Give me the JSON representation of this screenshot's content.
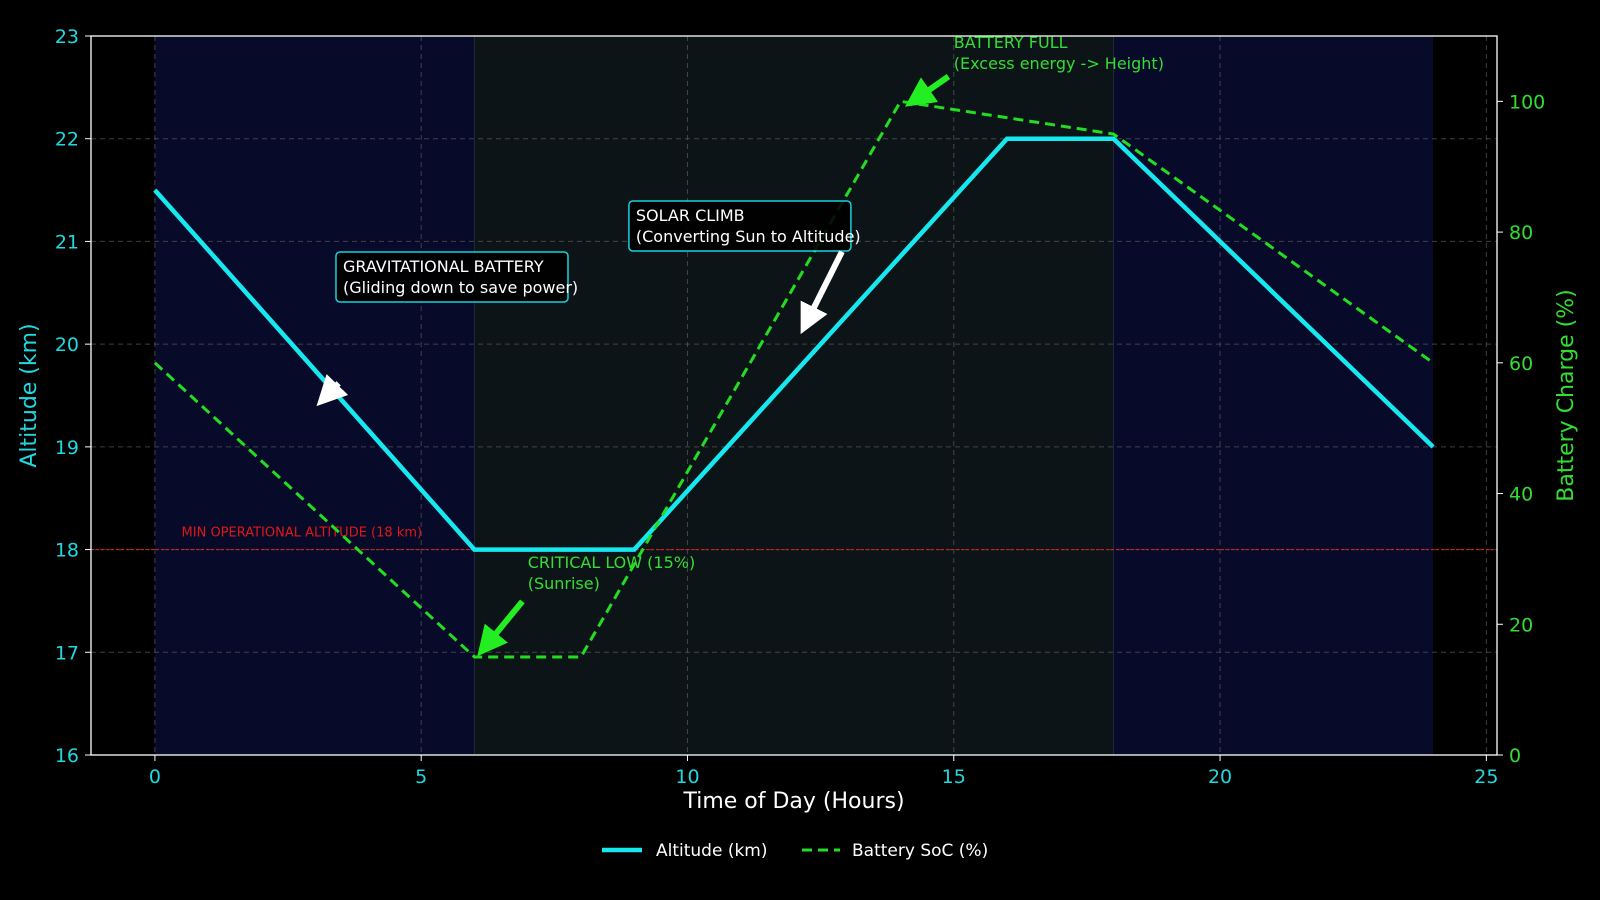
{
  "chart_data": {
    "type": "line",
    "xlabel": "Time of Day (Hours)",
    "ylabel": "Altitude (km)",
    "y2label": "Battery Charge (%)",
    "xlim": [
      -1.2,
      25.2
    ],
    "ylim": [
      16,
      23
    ],
    "y2lim": [
      0,
      110
    ],
    "xticks": [
      0,
      5,
      10,
      15,
      20,
      25
    ],
    "yticks": [
      16,
      17,
      18,
      19,
      20,
      21,
      22,
      23
    ],
    "y2ticks": [
      0,
      20,
      40,
      60,
      80,
      100
    ],
    "grid": true,
    "legend_position": "bottom-center",
    "colors": {
      "altitude": "#16e8f0",
      "battery": "#22dd22",
      "threshold": "#e01818",
      "left_axis_text": "#20d8e0",
      "right_axis_text": "#33dd33",
      "night_band": "#070a28",
      "day_band": "#0d1418",
      "background": "#000000"
    },
    "background_bands": [
      {
        "from": 0,
        "to": 6,
        "phase": "night"
      },
      {
        "from": 6,
        "to": 18,
        "phase": "day"
      },
      {
        "from": 18,
        "to": 24,
        "phase": "night"
      }
    ],
    "series": [
      {
        "name": "Altitude (km)",
        "axis": "left",
        "style": "solid",
        "x": [
          0,
          6,
          9,
          16,
          18,
          24
        ],
        "y": [
          21.5,
          18,
          18,
          22,
          22,
          19
        ]
      },
      {
        "name": "Battery SoC (%)",
        "axis": "right",
        "style": "dashed",
        "x": [
          0,
          6,
          8,
          14,
          18,
          24
        ],
        "y": [
          60,
          15,
          15,
          100,
          95,
          60
        ]
      }
    ],
    "threshold_line": {
      "value": 18,
      "label": "MIN OPERATIONAL ALTITUDE (18 km)"
    },
    "annotations": [
      {
        "id": "grav",
        "lines": [
          "GRAVITATIONAL BATTERY",
          "(Gliding down to save power)"
        ],
        "boxed": true,
        "color": "#ffffff"
      },
      {
        "id": "solar",
        "lines": [
          "SOLAR CLIMB",
          "(Converting Sun to Altitude)"
        ],
        "boxed": true,
        "color": "#ffffff"
      },
      {
        "id": "crit",
        "lines": [
          "CRITICAL LOW (15%)",
          "(Sunrise)"
        ],
        "boxed": false,
        "color": "#33dd33"
      },
      {
        "id": "full",
        "lines": [
          "BATTERY FULL",
          "(Excess energy -> Height)"
        ],
        "boxed": false,
        "color": "#33dd33"
      }
    ]
  }
}
